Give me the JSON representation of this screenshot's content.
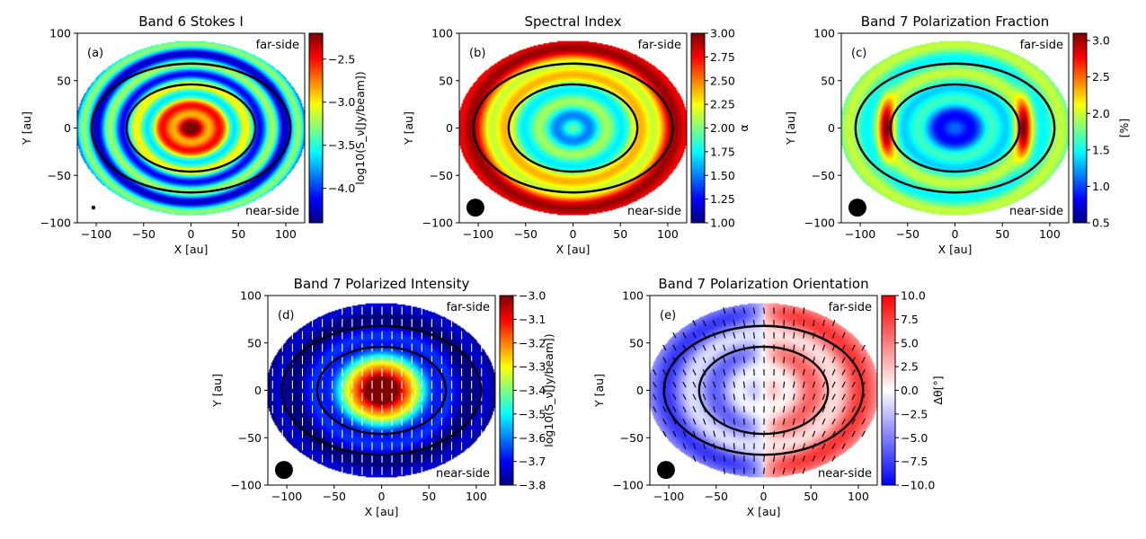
{
  "chart_data": [
    {
      "id": "a",
      "type": "heatmap",
      "title": "Band 6 Stokes I",
      "panel_label": "(a)",
      "xlabel": "X [au]",
      "ylabel": "Y [au]",
      "xlim": [
        -120,
        120
      ],
      "ylim": [
        -100,
        100
      ],
      "xticks": [
        -100,
        -50,
        0,
        50,
        100
      ],
      "yticks": [
        -100,
        -50,
        0,
        50,
        100
      ],
      "field": "stokes_i",
      "colormap": "jet",
      "colorbar": {
        "label": "log10(S_ν[Jy/beam])",
        "range": [
          -4.4,
          -2.2
        ],
        "ticks": [
          -4.0,
          -3.5,
          -3.0,
          -2.5
        ],
        "tick_labels": [
          "−4.0",
          "−3.5",
          "−3.0",
          "−2.5"
        ]
      },
      "annotations": {
        "top_right": "far-side",
        "bottom_right": "near-side"
      },
      "rings": [
        {
          "a": 68,
          "b": 46
        },
        {
          "a": 105,
          "b": 68
        }
      ],
      "beam_size": "small",
      "vectors": "none"
    },
    {
      "id": "b",
      "type": "heatmap",
      "title": "Spectral Index",
      "panel_label": "(b)",
      "xlabel": "X [au]",
      "ylabel": "Y [au]",
      "xlim": [
        -120,
        120
      ],
      "ylim": [
        -100,
        100
      ],
      "xticks": [
        -100,
        -50,
        0,
        50,
        100
      ],
      "yticks": [
        -100,
        -50,
        0,
        50,
        100
      ],
      "field": "spectral_index",
      "colormap": "jet",
      "colorbar": {
        "label": "α",
        "range": [
          1.0,
          3.0
        ],
        "ticks": [
          1.0,
          1.25,
          1.5,
          1.75,
          2.0,
          2.25,
          2.5,
          2.75,
          3.0
        ],
        "tick_labels": [
          "1.00",
          "1.25",
          "1.50",
          "1.75",
          "2.00",
          "2.25",
          "2.50",
          "2.75",
          "3.00"
        ]
      },
      "annotations": {
        "top_right": "far-side",
        "bottom_right": "near-side"
      },
      "rings": [
        {
          "a": 68,
          "b": 46
        },
        {
          "a": 105,
          "b": 68
        }
      ],
      "beam_size": "large",
      "vectors": "none"
    },
    {
      "id": "c",
      "type": "heatmap",
      "title": "Band 7 Polarization Fraction",
      "panel_label": "(c)",
      "xlabel": "X [au]",
      "ylabel": "Y [au]",
      "xlim": [
        -120,
        120
      ],
      "ylim": [
        -100,
        100
      ],
      "xticks": [
        -100,
        -50,
        0,
        50,
        100
      ],
      "yticks": [
        -100,
        -50,
        0,
        50,
        100
      ],
      "field": "pol_fraction",
      "colormap": "jet",
      "colorbar": {
        "label": "[%]",
        "range": [
          0.5,
          3.1
        ],
        "ticks": [
          0.5,
          1.0,
          1.5,
          2.0,
          2.5,
          3.0
        ],
        "tick_labels": [
          "0.5",
          "1.0",
          "1.5",
          "2.0",
          "2.5",
          "3.0"
        ]
      },
      "annotations": {
        "top_right": "far-side",
        "bottom_right": "near-side"
      },
      "rings": [
        {
          "a": 68,
          "b": 46
        },
        {
          "a": 105,
          "b": 68
        }
      ],
      "beam_size": "large",
      "vectors": "none"
    },
    {
      "id": "d",
      "type": "heatmap",
      "title": "Band 7 Polarized Intensity",
      "panel_label": "(d)",
      "xlabel": "X [au]",
      "ylabel": "Y [au]",
      "xlim": [
        -120,
        120
      ],
      "ylim": [
        -100,
        100
      ],
      "xticks": [
        -100,
        -50,
        0,
        50,
        100
      ],
      "yticks": [
        -100,
        -50,
        0,
        50,
        100
      ],
      "field": "pol_intensity",
      "colormap": "jet",
      "colorbar": {
        "label": "log10(S_ν[Jy/beam])",
        "range": [
          -3.8,
          -3.0
        ],
        "ticks": [
          -3.8,
          -3.7,
          -3.6,
          -3.5,
          -3.4,
          -3.3,
          -3.2,
          -3.1,
          -3.0
        ],
        "tick_labels": [
          "−3.8",
          "−3.7",
          "−3.6",
          "−3.5",
          "−3.4",
          "−3.3",
          "−3.2",
          "−3.1",
          "−3.0"
        ]
      },
      "annotations": {
        "top_right": "far-side",
        "bottom_right": "near-side"
      },
      "rings": [
        {
          "a": 68,
          "b": 46
        },
        {
          "a": 105,
          "b": 68
        }
      ],
      "beam_size": "large",
      "vectors": "white"
    },
    {
      "id": "e",
      "type": "heatmap",
      "title": "Band 7 Polarization Orientation",
      "panel_label": "(e)",
      "xlabel": "X [au]",
      "ylabel": "Y [au]",
      "xlim": [
        -120,
        120
      ],
      "ylim": [
        -100,
        100
      ],
      "xticks": [
        -100,
        -50,
        0,
        50,
        100
      ],
      "yticks": [
        -100,
        -50,
        0,
        50,
        100
      ],
      "field": "pol_orientation",
      "colormap": "bwr",
      "colorbar": {
        "label": "Δθ[°]",
        "range": [
          -10.0,
          10.0
        ],
        "ticks": [
          -10.0,
          -7.5,
          -5.0,
          -2.5,
          0.0,
          2.5,
          5.0,
          7.5,
          10.0
        ],
        "tick_labels": [
          "−10.0",
          "−7.5",
          "−5.0",
          "−2.5",
          "0.0",
          "2.5",
          "5.0",
          "7.5",
          "10.0"
        ]
      },
      "annotations": {
        "top_right": "far-side",
        "bottom_right": "near-side"
      },
      "rings": [
        {
          "a": 68,
          "b": 46
        },
        {
          "a": 105,
          "b": 68
        }
      ],
      "beam_size": "large",
      "vectors": "black"
    }
  ]
}
